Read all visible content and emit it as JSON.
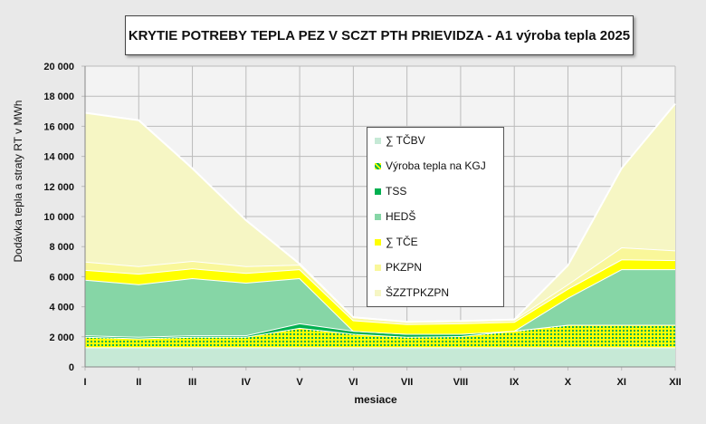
{
  "chart_data": {
    "type": "area",
    "stacked": true,
    "title": "KRYTIE POTREBY TEPLA PEZ V SCZT PTH PRIEVIDZA - A1 výroba tepla 2025",
    "xlabel": "mesiace",
    "ylabel": "Dodávka tepla a straty RT v MWh",
    "ylim": [
      0,
      20000
    ],
    "yticks": [
      "0",
      "2 000",
      "4 000",
      "6 000",
      "8 000",
      "10 000",
      "12 000",
      "14 000",
      "16 000",
      "18 000",
      "20 000"
    ],
    "categories": [
      "I",
      "II",
      "III",
      "IV",
      "V",
      "VI",
      "VII",
      "VIII",
      "IX",
      "X",
      "XI",
      "XII"
    ],
    "grid": true,
    "legend_position": "center",
    "series": [
      {
        "name": "∑ TČBV",
        "color": "#c6e9d6",
        "values": [
          1300,
          1300,
          1300,
          1300,
          1300,
          1300,
          1300,
          1300,
          1300,
          1300,
          1300,
          1300
        ]
      },
      {
        "name": "Výroba tepla na KGJ",
        "color": "#ffff00",
        "pattern_color": "#00b050",
        "values": [
          700,
          600,
          700,
          700,
          1300,
          900,
          700,
          750,
          1100,
          1500,
          1500,
          1500
        ]
      },
      {
        "name": "TSS",
        "color": "#00b050",
        "values": [
          100,
          100,
          100,
          100,
          300,
          200,
          200,
          150,
          0,
          0,
          0,
          0
        ]
      },
      {
        "name": "HEDŠ",
        "color": "#86d6a6",
        "values": [
          3700,
          3500,
          3800,
          3500,
          3000,
          0,
          0,
          0,
          0,
          1800,
          3700,
          3700
        ]
      },
      {
        "name": "∑ TČE",
        "color": "#ffff00",
        "values": [
          650,
          700,
          650,
          650,
          600,
          700,
          650,
          700,
          600,
          600,
          650,
          600
        ]
      },
      {
        "name": "PKZPN",
        "color": "#f9f79a",
        "values": [
          550,
          500,
          500,
          450,
          300,
          200,
          150,
          150,
          150,
          300,
          800,
          650
        ]
      },
      {
        "name": "ŠZZTPKZPN",
        "color": "#f6f6c4",
        "values": [
          9900,
          9700,
          6150,
          3050,
          50,
          0,
          0,
          0,
          0,
          1250,
          5250,
          9750
        ]
      }
    ]
  }
}
